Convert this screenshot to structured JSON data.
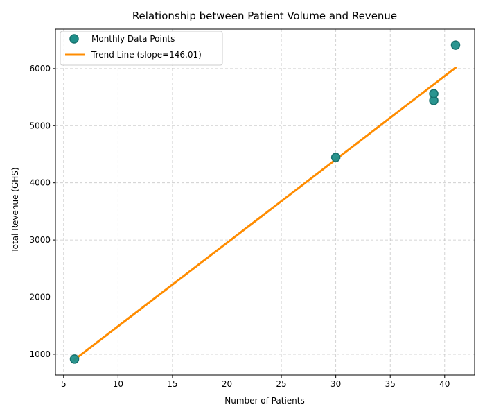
{
  "chart_data": {
    "type": "scatter",
    "title": "Relationship between Patient Volume and Revenue",
    "xlabel": "Number of Patients",
    "ylabel": "Total Revenue (GHS)",
    "xlim": [
      4.25,
      42.75
    ],
    "ylim": [
      635,
      6690
    ],
    "xticks": [
      5,
      10,
      15,
      20,
      25,
      30,
      35,
      40
    ],
    "yticks": [
      1000,
      2000,
      3000,
      4000,
      5000,
      6000
    ],
    "grid": true,
    "legend_position": "top-left",
    "series": [
      {
        "name": "Monthly Data Points",
        "kind": "scatter",
        "color": "#1f8f8a",
        "points": [
          {
            "x": 6,
            "y": 915
          },
          {
            "x": 30,
            "y": 4445
          },
          {
            "x": 39,
            "y": 5440
          },
          {
            "x": 39,
            "y": 5560
          },
          {
            "x": 41,
            "y": 6410
          }
        ]
      },
      {
        "name": "Trend Line (slope=146.01)",
        "kind": "line",
        "color": "#ff8c00",
        "points": [
          {
            "x": 6,
            "y": 905
          },
          {
            "x": 41,
            "y": 6015
          }
        ]
      }
    ]
  }
}
